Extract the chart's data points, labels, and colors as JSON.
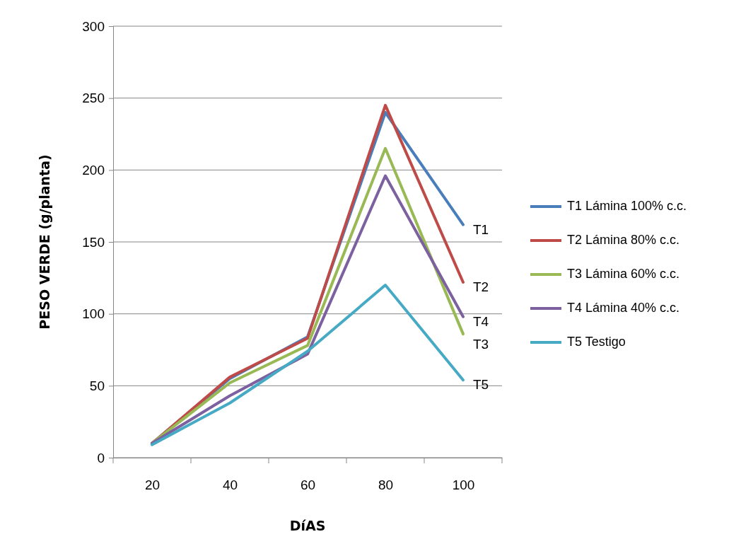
{
  "chart_data": {
    "type": "line",
    "xlabel": "DíAS",
    "ylabel": "PESO VERDE (g/planta)",
    "categories": [
      "20",
      "40",
      "60",
      "80",
      "100"
    ],
    "series": [
      {
        "name": "T1 Lámina 100% c.c.",
        "color": "#4a7ebb",
        "values": [
          10,
          55,
          84,
          240,
          162
        ]
      },
      {
        "name": "T2 Lámina 80% c.c.",
        "color": "#be4b48",
        "values": [
          10,
          56,
          83,
          245,
          122
        ]
      },
      {
        "name": "T3 Lámina 60% c.c.",
        "color": "#98b954",
        "values": [
          10,
          52,
          78,
          215,
          86
        ]
      },
      {
        "name": "T4 Lámina 40% c.c.",
        "color": "#7d60a0",
        "values": [
          10,
          43,
          72,
          196,
          98
        ]
      },
      {
        "name": "T5 Testigo",
        "color": "#46aac5",
        "values": [
          9,
          38,
          74,
          120,
          54
        ]
      }
    ],
    "ylim": [
      0,
      300
    ],
    "yticks": [
      0,
      50,
      100,
      150,
      200,
      250,
      300
    ],
    "grid": "y",
    "legend": "right",
    "marker": "none",
    "line_style": "solid",
    "annotations": [
      {
        "text": "T1",
        "x": "100",
        "y": 162
      },
      {
        "text": "T2",
        "x": "100",
        "y": 122
      },
      {
        "text": "T4",
        "x": "100",
        "y": 98
      },
      {
        "text": "T3",
        "x": "100",
        "y": 86
      },
      {
        "text": "T5",
        "x": "100",
        "y": 54
      }
    ]
  }
}
